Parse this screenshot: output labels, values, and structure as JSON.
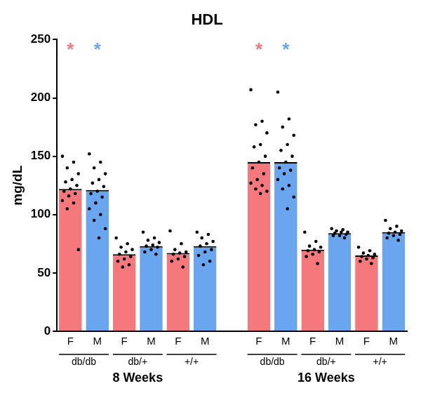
{
  "chart_data": {
    "type": "bar",
    "title": "HDL",
    "y_label": "mg/dL",
    "categories": [
      "F",
      "M",
      "F",
      "M",
      "F",
      "M",
      null,
      "F",
      "M",
      "F",
      "M",
      "F",
      "M"
    ],
    "genotypes": [
      "db/db",
      "db/db",
      "db/+",
      "db/+",
      "+/+",
      "+/+",
      null,
      "db/db",
      "db/db",
      "db/+",
      "db/+",
      "+/+",
      "+/+"
    ],
    "periods": [
      "8 Weeks",
      "8 Weeks",
      "8 Weeks",
      "8 Weeks",
      "8 Weeks",
      "8 Weeks",
      null,
      "16 Weeks",
      "16 Weeks",
      "16 Weeks",
      "16 Weeks",
      "16 Weeks",
      "16 Weeks"
    ],
    "values": [
      122,
      121,
      66,
      73,
      67,
      73,
      null,
      145,
      145,
      70,
      84,
      65,
      85
    ],
    "colors": [
      "#f4787c",
      "#6aa6f0",
      "#f4787c",
      "#6aa6f0",
      "#f4787c",
      "#6aa6f0",
      null,
      "#f4787c",
      "#6aa6f0",
      "#f4787c",
      "#6aa6f0",
      "#f4787c",
      "#6aa6f0"
    ],
    "points": [
      [
        150,
        145,
        140,
        135,
        130,
        128,
        125,
        122,
        120,
        118,
        116,
        112,
        110,
        105,
        70
      ],
      [
        152,
        145,
        140,
        135,
        130,
        127,
        124,
        120,
        118,
        115,
        110,
        105,
        100,
        95,
        88,
        80
      ],
      [
        80,
        75,
        72,
        70,
        68,
        66,
        64,
        62,
        60,
        57,
        55
      ],
      [
        85,
        80,
        78,
        76,
        74,
        73,
        72,
        70,
        68,
        66
      ],
      [
        86,
        75,
        70,
        68,
        67,
        66,
        64,
        62,
        60,
        55
      ],
      [
        85,
        83,
        80,
        77,
        75,
        73,
        70,
        68,
        65,
        60,
        57
      ],
      null,
      [
        207,
        180,
        177,
        170,
        160,
        158,
        150,
        145,
        140,
        135,
        130,
        127,
        125,
        122,
        120,
        118
      ],
      [
        205,
        182,
        175,
        168,
        160,
        155,
        150,
        145,
        140,
        138,
        135,
        130,
        125,
        122,
        115,
        105
      ],
      [
        85,
        77,
        73,
        72,
        70,
        69,
        68,
        66,
        64,
        58
      ],
      [
        88,
        87,
        86,
        85,
        85,
        84,
        83,
        82,
        82,
        80
      ],
      [
        72,
        69,
        67,
        66,
        65,
        64,
        63,
        62,
        60,
        58
      ],
      [
        95,
        90,
        88,
        86,
        85,
        84,
        83,
        82,
        80,
        78
      ]
    ],
    "annotations": [
      "*",
      "*",
      null,
      null,
      null,
      null,
      null,
      "*",
      "*",
      null,
      null,
      null,
      null
    ],
    "ylim": [
      0,
      250
    ],
    "yticks": [
      0,
      50,
      100,
      150,
      200,
      250
    ],
    "grid": false
  }
}
